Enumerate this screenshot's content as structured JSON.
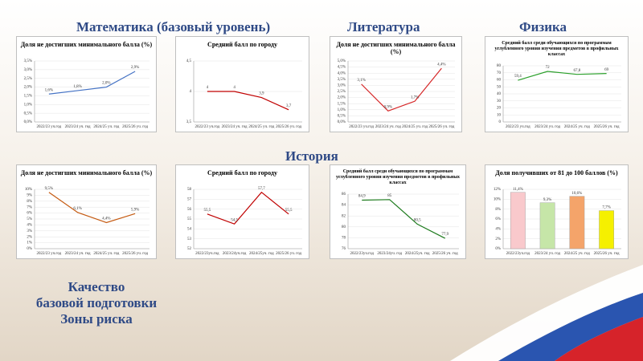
{
  "headings": {
    "math": "Математика (базовый уровень)",
    "literature": "Литература",
    "physics": "Физика",
    "history": "История",
    "footer": [
      "Качество",
      "базовой подготовки",
      "Зоны риска"
    ]
  },
  "chart_data": [
    {
      "type": "line",
      "title": "Доля не достигших минимального балла (%)",
      "color": "#4472c4",
      "grid": true,
      "categories": [
        "2022/23 уч.год",
        "2023/24 уч. год",
        "2024/25 уч. год",
        "2025/26 уч. год"
      ],
      "values": [
        1.6,
        1.8,
        2.0,
        2.9
      ],
      "value_labels": [
        "1,6%",
        "1,8%",
        "2,0%",
        "2,9%"
      ],
      "ylim": [
        0,
        3.5
      ],
      "yticks": [
        {
          "value": 0,
          "label": "0,0%"
        },
        {
          "value": 0.5,
          "label": "0,5%"
        },
        {
          "value": 1,
          "label": "1,0%"
        },
        {
          "value": 1.5,
          "label": "1,5%"
        },
        {
          "value": 2,
          "label": "2,0%"
        },
        {
          "value": 2.5,
          "label": "2,5%"
        },
        {
          "value": 3,
          "label": "3,0%"
        },
        {
          "value": 3.5,
          "label": "3,5%"
        }
      ]
    },
    {
      "type": "line",
      "title": "Средний балл по городу",
      "color": "#c00000",
      "grid": true,
      "categories": [
        "2022/23 уч.год",
        "2023/24 уч. год",
        "2024/25 уч. год",
        "2025/26 уч. год"
      ],
      "values": [
        4,
        4,
        3.9,
        3.7
      ],
      "value_labels": [
        "4",
        "4",
        "3,9",
        "3,7"
      ],
      "ylim": [
        3.5,
        4.5
      ],
      "yticks": [
        {
          "value": 3.5,
          "label": "3,5"
        },
        4,
        {
          "value": 4.5,
          "label": "4,5"
        }
      ]
    },
    {
      "type": "line",
      "title": "Доля не достигших минимального балла (%)",
      "color": "#d62728",
      "grid": true,
      "categories": [
        "2022/23 уч.год",
        "2023/24 уч. год",
        "2024/25 уч. год",
        "2025/26 уч. год"
      ],
      "values": [
        3.1,
        0.9,
        1.7,
        4.4
      ],
      "value_labels": [
        "3,1%",
        "0,9%",
        "1,7%",
        "4,4%"
      ],
      "ylim": [
        0,
        5
      ],
      "yticks": [
        {
          "value": 0,
          "label": "0,0%"
        },
        {
          "value": 0.5,
          "label": "0,5%"
        },
        {
          "value": 1,
          "label": "1,0%"
        },
        {
          "value": 1.5,
          "label": "1,5%"
        },
        {
          "value": 2,
          "label": "2,0%"
        },
        {
          "value": 2.5,
          "label": "2,5%"
        },
        {
          "value": 3,
          "label": "3,0%"
        },
        {
          "value": 3.5,
          "label": "3,5%"
        },
        {
          "value": 4,
          "label": "4,0%"
        },
        {
          "value": 4.5,
          "label": "4,5%"
        },
        {
          "value": 5,
          "label": "5,0%"
        }
      ]
    },
    {
      "type": "line",
      "title": "Средний балл среди обучающихся по программам углубленного уровня изучения предметов в профильных классах",
      "color": "#2ca02c",
      "grid": true,
      "categories": [
        "2022/23 уч.год",
        "2023/24 уч. год",
        "2024/25 уч. год",
        "2025/26 уч. год"
      ],
      "values": [
        59.4,
        72,
        67.8,
        69
      ],
      "value_labels": [
        "59,4",
        "72",
        "67,8",
        "69"
      ],
      "ylim": [
        0,
        80
      ],
      "yticks": [
        0,
        10,
        20,
        30,
        40,
        50,
        60,
        70,
        80
      ]
    },
    {
      "type": "line",
      "title": "Доля не достигших минимального балла (%)",
      "color": "#c55a11",
      "grid": true,
      "categories": [
        "2022/23 уч.год",
        "2023/24 уч. год",
        "2024/25 уч. год",
        "2025/26 уч. год"
      ],
      "values": [
        9.5,
        6.1,
        4.4,
        5.9
      ],
      "value_labels": [
        "9,5%",
        "6,1%",
        "4,4%",
        "5,9%"
      ],
      "ylim": [
        0,
        10
      ],
      "yticks": [
        {
          "value": 0,
          "label": "0%"
        },
        {
          "value": 1,
          "label": "1%"
        },
        {
          "value": 2,
          "label": "2%"
        },
        {
          "value": 3,
          "label": "3%"
        },
        {
          "value": 4,
          "label": "4%"
        },
        {
          "value": 5,
          "label": "5%"
        },
        {
          "value": 6,
          "label": "6%"
        },
        {
          "value": 7,
          "label": "7%"
        },
        {
          "value": 8,
          "label": "8%"
        },
        {
          "value": 9,
          "label": "9%"
        },
        {
          "value": 10,
          "label": "10%"
        }
      ]
    },
    {
      "type": "line",
      "title": "Средний балл по городу",
      "color": "#c00000",
      "grid": true,
      "categories": [
        "2022/23уч.год",
        "2023/24уч.год",
        "2024/25уч. год",
        "2025/26 уч. год"
      ],
      "values": [
        55.5,
        54.5,
        57.7,
        55.5
      ],
      "value_labels": [
        "55,5",
        "54,5",
        "57,7",
        "55,5"
      ],
      "ylim": [
        52,
        58
      ],
      "yticks": [
        52,
        53,
        54,
        55,
        56,
        57,
        58
      ]
    },
    {
      "type": "line",
      "title": "Средний балл среди обучающихся по программам углубленного уровня изучения предметов в профильных классах",
      "color": "#1e7b1e",
      "grid": true,
      "categories": [
        "2022/23уч.год",
        "2023/24уч. год",
        "2024/25уч. год",
        "2025/26 уч. год"
      ],
      "values": [
        84.9,
        85,
        80.5,
        77.9
      ],
      "value_labels": [
        "84,9",
        "85",
        "80,5",
        "77,9"
      ],
      "ylim": [
        76,
        86
      ],
      "yticks": [
        76,
        78,
        80,
        82,
        84,
        86
      ]
    },
    {
      "type": "bar",
      "title": "Доля получивших от 81 до 100 баллов (%)",
      "grid": true,
      "colors": [
        "#f9c9cc",
        "#c6e6a8",
        "#f4a46a",
        "#f5f000"
      ],
      "categories": [
        "2022/23уч.год",
        "2023/24 уч. год",
        "2024/25 уч. год",
        "2025/26 уч. год"
      ],
      "values": [
        11.4,
        9.3,
        10.6,
        7.7
      ],
      "value_labels": [
        "11,4%",
        "9,3%",
        "10,6%",
        "7,7%"
      ],
      "ylim": [
        0,
        12
      ],
      "yticks": [
        {
          "value": 0,
          "label": "0%"
        },
        {
          "value": 2,
          "label": "2%"
        },
        {
          "value": 4,
          "label": "4%"
        },
        {
          "value": 6,
          "label": "6%"
        },
        {
          "value": 8,
          "label": "8%"
        },
        {
          "value": 10,
          "label": "10%"
        },
        {
          "value": 12,
          "label": "12%"
        }
      ]
    }
  ]
}
